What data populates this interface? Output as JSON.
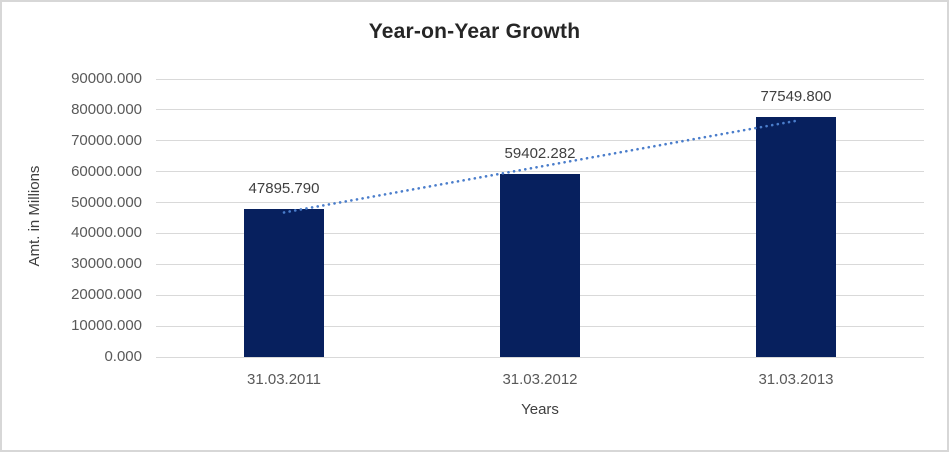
{
  "chart_data": {
    "type": "bar",
    "title": "Year-on-Year Growth",
    "xlabel": "Years",
    "ylabel": "Amt. in Millions",
    "categories": [
      "31.03.2011",
      "31.03.2012",
      "31.03.2013"
    ],
    "values": [
      47895.79,
      59402.282,
      77549.8
    ],
    "data_labels": [
      "47895.790",
      "59402.282",
      "77549.800"
    ],
    "ylim": [
      0,
      90000
    ],
    "ytick_step": 10000,
    "yticks": [
      "0.000",
      "10000.000",
      "20000.000",
      "30000.000",
      "40000.000",
      "50000.000",
      "60000.000",
      "70000.000",
      "80000.000",
      "90000.000"
    ],
    "grid": "horizontal",
    "legend": "none",
    "trendline": {
      "type": "linear",
      "style": "dotted"
    },
    "colors": {
      "bar": "#07205e",
      "trendline": "#4a7dcb",
      "gridline": "#d9d9d9",
      "axis_line": "#d9d9d9",
      "title_text": "#262626",
      "tick_text": "#595959",
      "axis_title_text": "#3f3f3f",
      "data_label_text": "#404040",
      "background": "#ffffff",
      "border": "#d7d7d7"
    }
  }
}
